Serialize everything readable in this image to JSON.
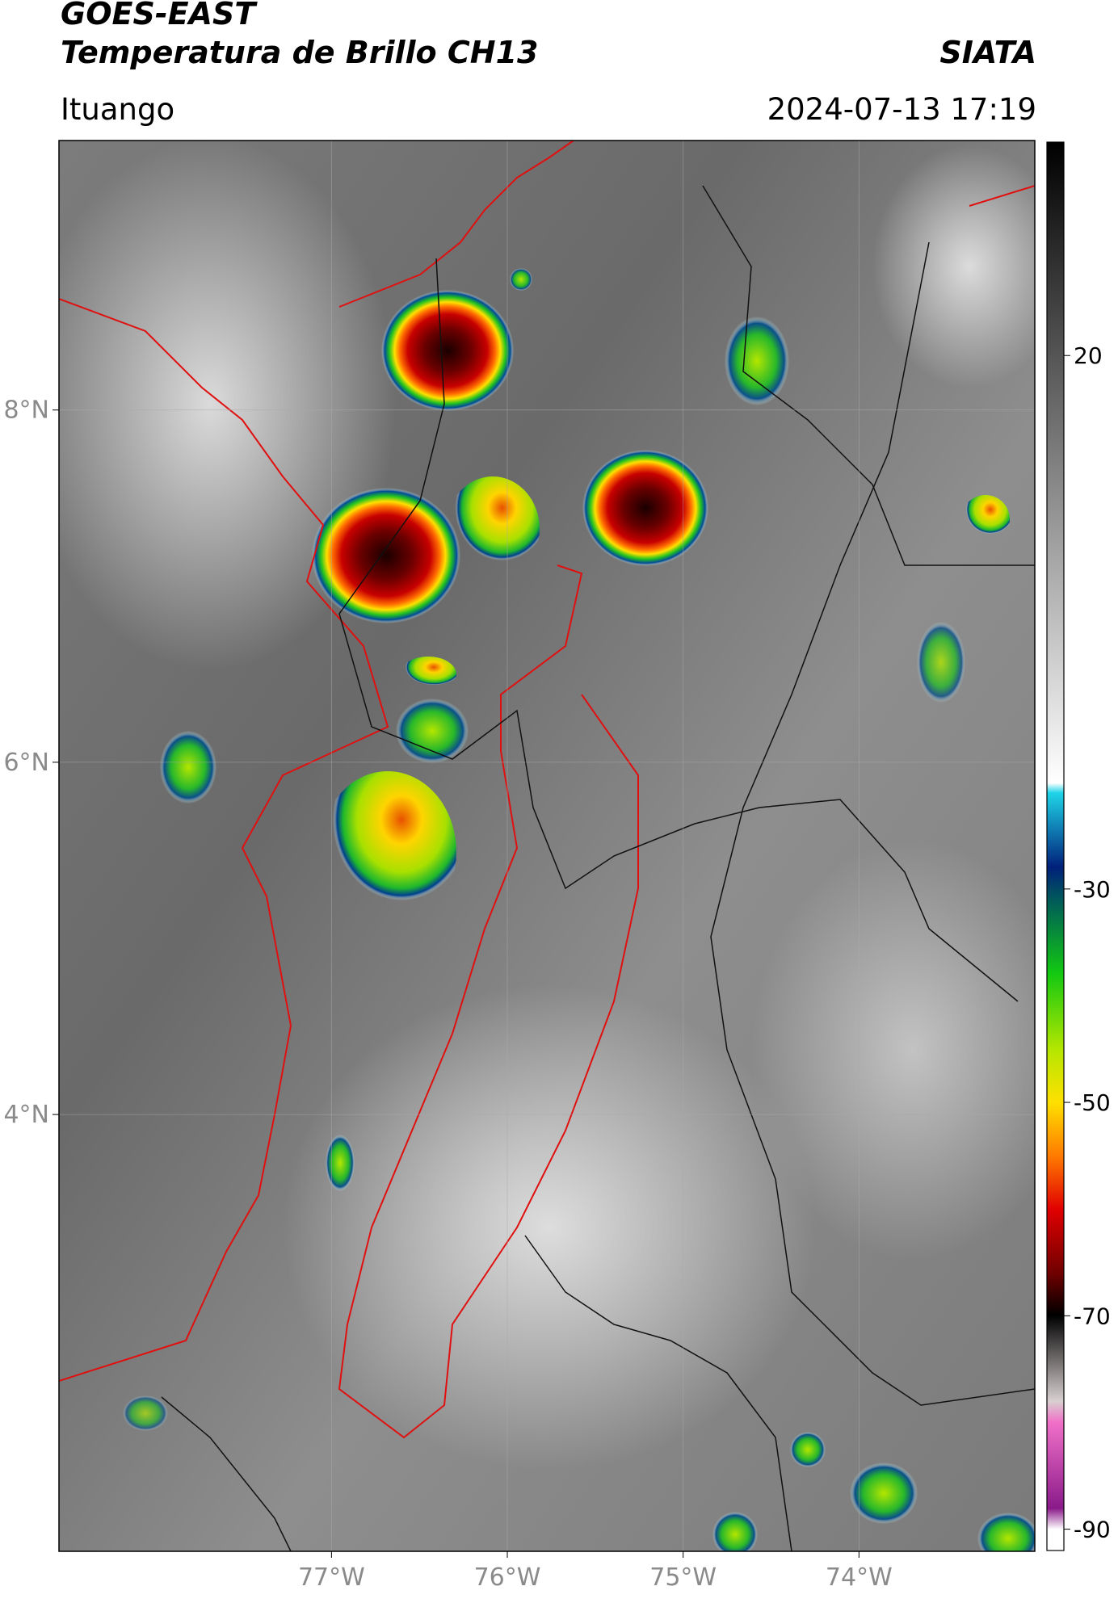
{
  "chart_data": {
    "type": "map",
    "title": "GOES-EAST",
    "subtitle": "Temperatura de Brillo CH13",
    "source": "SIATA",
    "location": "Ituango",
    "datetime": "2024-07-13 17:19",
    "xlim": [
      -78.55,
      -73.0
    ],
    "ylim": [
      1.52,
      9.53
    ],
    "xticks": [
      {
        "value": -77,
        "label": "77°W"
      },
      {
        "value": -76,
        "label": "76°W"
      },
      {
        "value": -75,
        "label": "75°W"
      },
      {
        "value": -74,
        "label": "74°W"
      }
    ],
    "yticks": [
      {
        "value": 8,
        "label": "8°N"
      },
      {
        "value": 6,
        "label": "6°N"
      },
      {
        "value": 4,
        "label": "4°N"
      }
    ],
    "grid": true,
    "colorbar": {
      "clim": [
        -92,
        40
      ],
      "ticks": [
        20,
        -30,
        -50,
        -70,
        -90
      ]
    }
  }
}
